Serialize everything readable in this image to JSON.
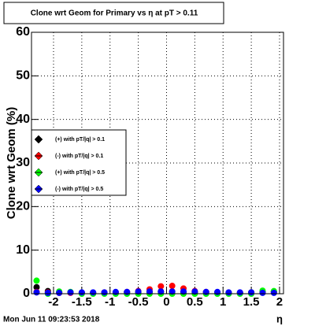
{
  "chart_data": {
    "type": "scatter",
    "title": "Clone wrt Geom for Primary vs  η at pT > 0.11",
    "y_label": "Clone wrt Geom (%)",
    "x_label": "η",
    "footer": "Mon Jun 11 09:23:53 2018",
    "x": [
      -2.3,
      -2.1,
      -1.9,
      -1.7,
      -1.5,
      -1.3,
      -1.1,
      -0.9,
      -0.7,
      -0.5,
      -0.3,
      -0.1,
      0.1,
      0.3,
      0.5,
      0.7,
      0.9,
      1.1,
      1.3,
      1.5,
      1.7,
      1.9
    ],
    "series": [
      {
        "name": "(+) with pT/|q| > 0.1",
        "color": "#000000",
        "values": [
          1.5,
          0.6,
          0.3,
          0.3,
          0.2,
          0.2,
          0.2,
          0.2,
          0.3,
          0.3,
          0.4,
          0.5,
          0.5,
          0.4,
          0.3,
          0.3,
          0.2,
          0.2,
          0.2,
          0.3,
          0.4,
          0.5
        ]
      },
      {
        "name": "(-) with pT/|q| > 0.1",
        "color": "#ff0000",
        "values": [
          0.4,
          0.3,
          0.2,
          0.2,
          0.2,
          0.2,
          0.3,
          0.3,
          0.4,
          0.6,
          1,
          1.7,
          1.8,
          1.2,
          0.6,
          0.4,
          0.3,
          0.2,
          0.2,
          0.2,
          0.3,
          0.4
        ]
      },
      {
        "name": "(+) with pT/|q| > 0.5",
        "color": "#00ff00",
        "values": [
          3,
          0,
          0.5,
          0.4,
          0,
          0,
          0,
          0,
          0,
          0,
          0,
          0,
          0,
          0,
          0,
          0,
          0,
          0,
          0,
          0,
          0.7,
          0.6
        ]
      },
      {
        "name": "(-) with pT/|q| > 0.5",
        "color": "#0000ff",
        "values": [
          0.3,
          0.2,
          0.2,
          0.3,
          0.3,
          0.3,
          0.3,
          0.4,
          0.4,
          0.5,
          0.5,
          0.5,
          0.5,
          0.5,
          0.5,
          0.4,
          0.4,
          0.3,
          0.3,
          0.3,
          0.2,
          0.2
        ]
      }
    ],
    "xlim": [
      -2.39,
      2.07
    ],
    "ylim": [
      0,
      60
    ],
    "xticks": [
      -2,
      -1.5,
      -1,
      -0.5,
      0,
      0.5,
      1,
      1.5,
      2
    ],
    "yticks": [
      0,
      10,
      20,
      30,
      40,
      50,
      60
    ],
    "grid": true
  }
}
